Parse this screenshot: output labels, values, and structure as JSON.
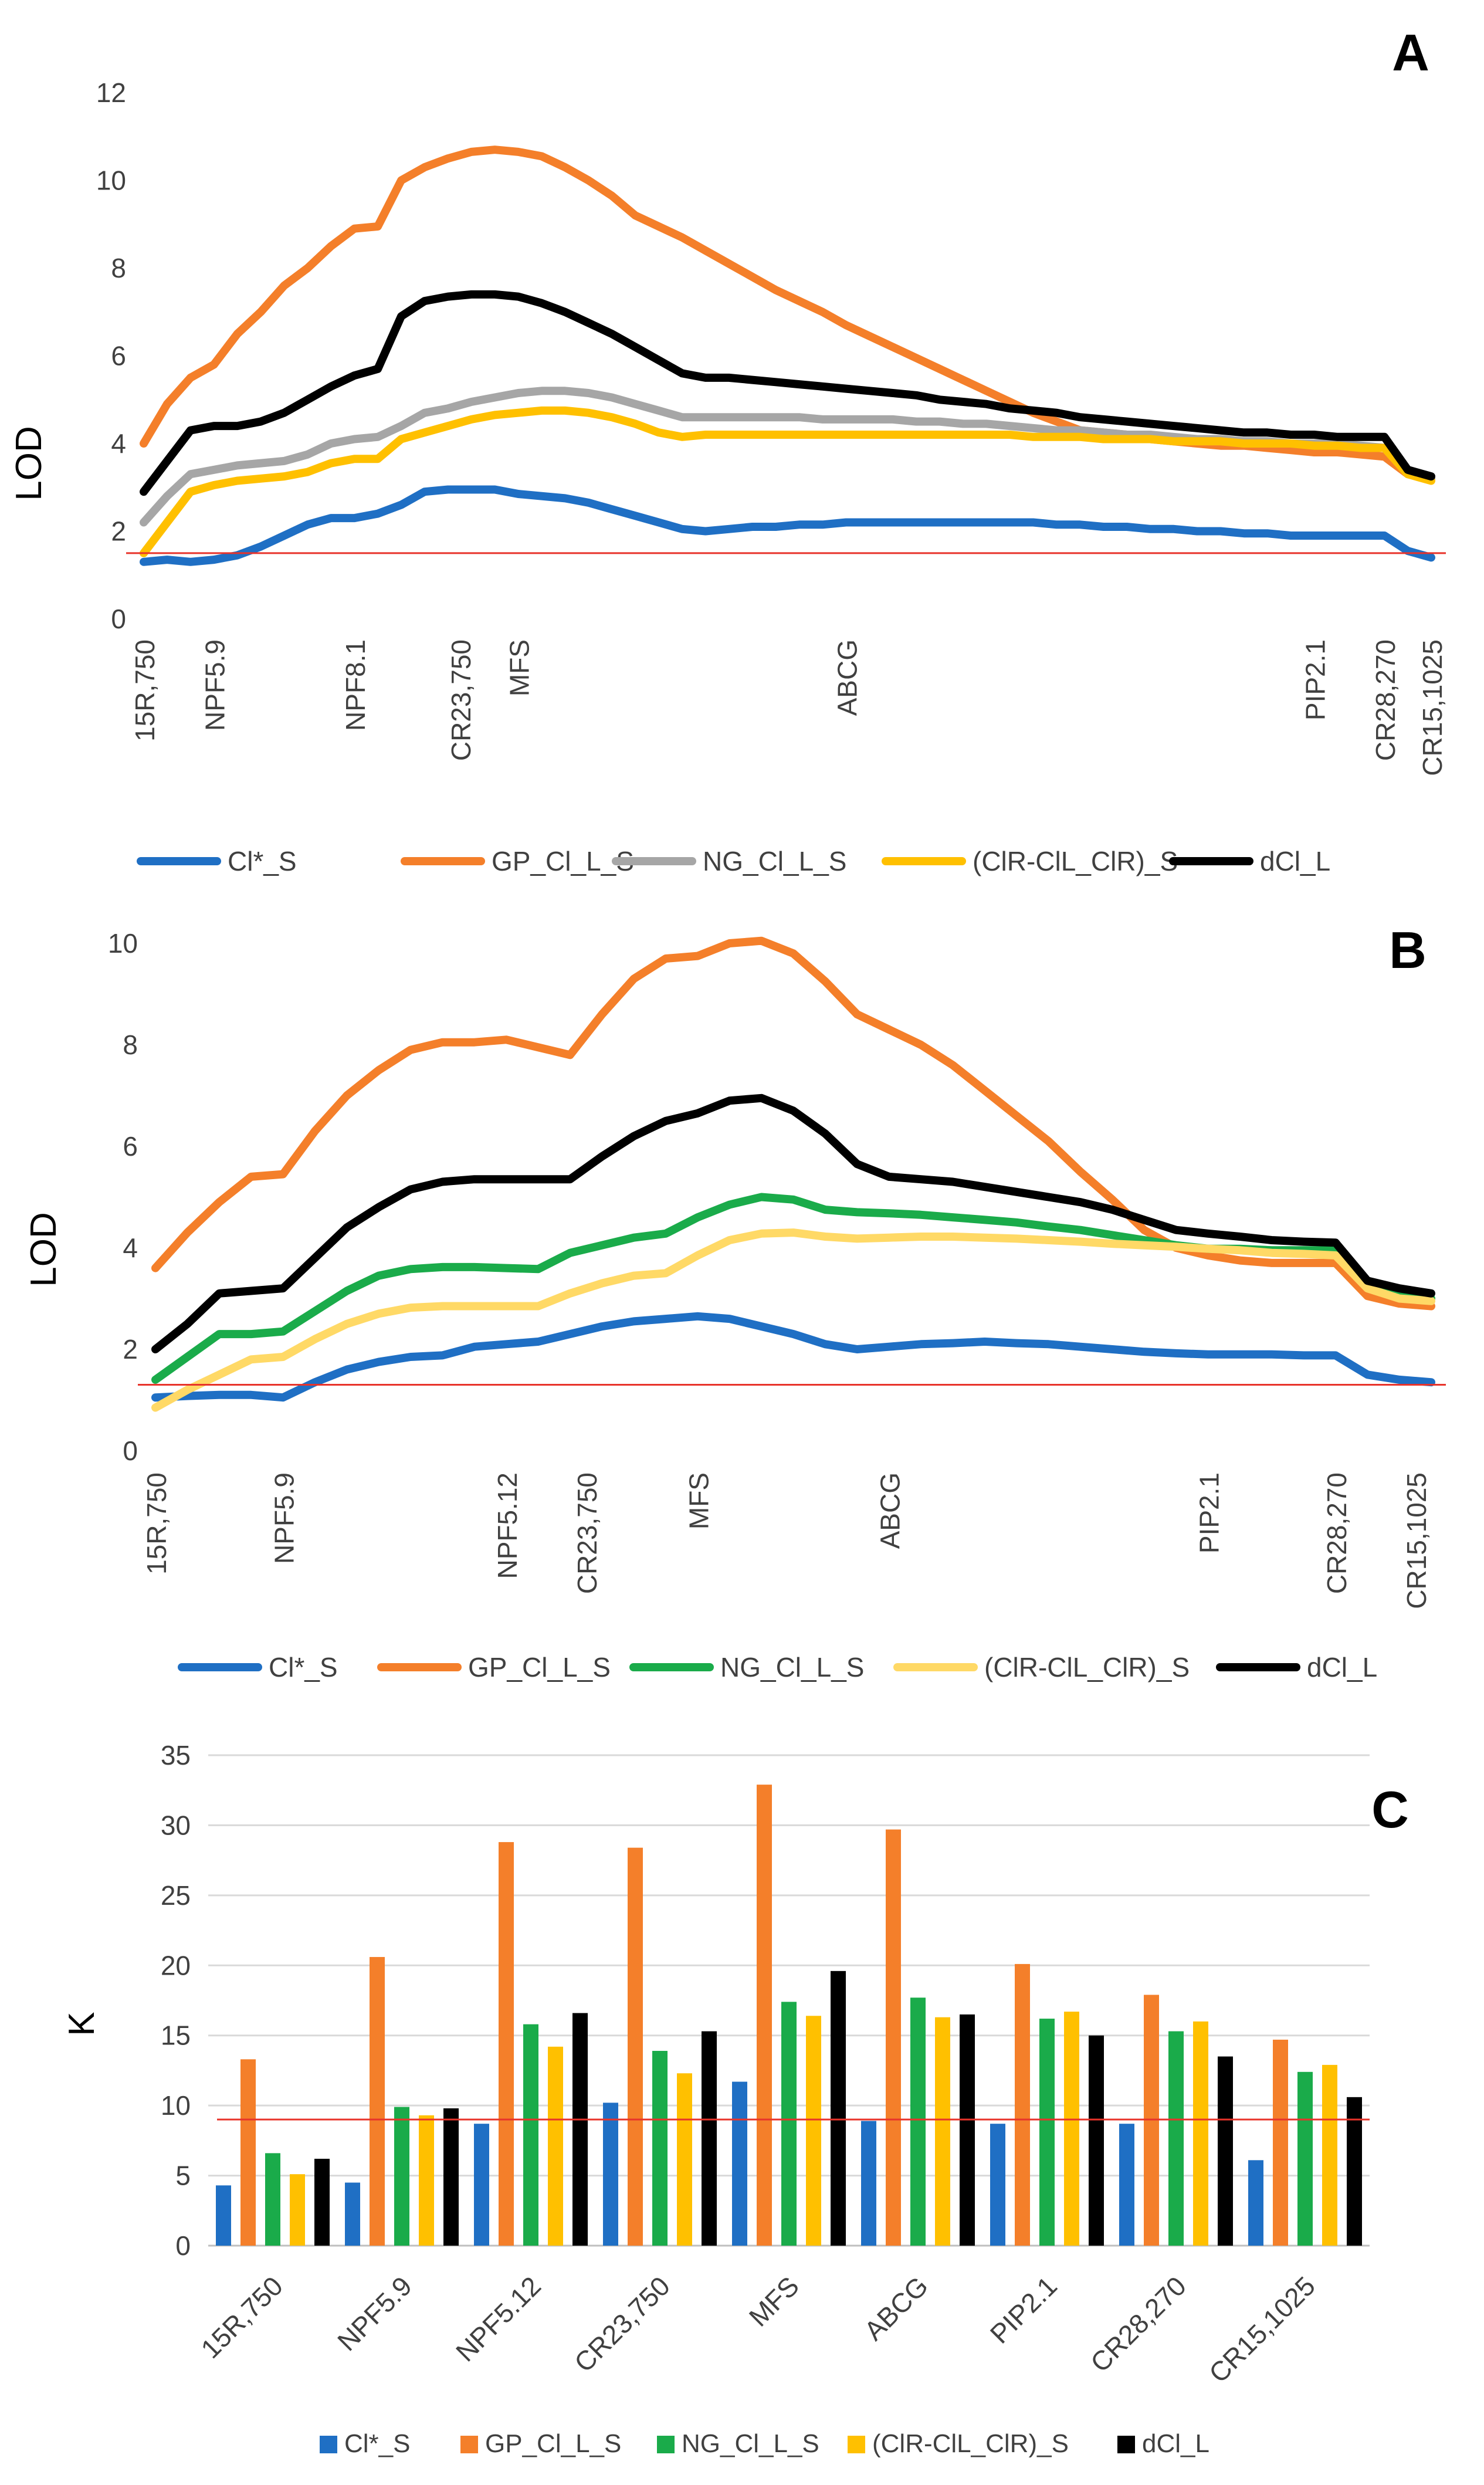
{
  "chart_data": [
    {
      "panel": "A",
      "type": "line",
      "ylabel": "LOD",
      "ylim": [
        0,
        12
      ],
      "yticks": [
        "0",
        "2",
        "4",
        "6",
        "8",
        "10",
        "12"
      ],
      "grid": false,
      "threshold": 1.5,
      "xlim": [
        0,
        55
      ],
      "markers": [
        {
          "label": "15R,750",
          "x": 0
        },
        {
          "label": "NPF5.9",
          "x": 3
        },
        {
          "label": "NPF8.1",
          "x": 9
        },
        {
          "label": "CR23,750",
          "x": 13.5
        },
        {
          "label": "MFS",
          "x": 16
        },
        {
          "label": "ABCG",
          "x": 30
        },
        {
          "label": "PIP2.1",
          "x": 50
        },
        {
          "label": "CR28,270",
          "x": 53
        },
        {
          "label": "CR15,1025",
          "x": 55
        }
      ],
      "x": [
        0,
        1,
        2,
        3,
        4,
        5,
        6,
        7,
        8,
        9,
        10,
        11,
        12,
        13,
        14,
        15,
        16,
        17,
        18,
        19,
        20,
        21,
        22,
        23,
        24,
        25,
        26,
        27,
        28,
        29,
        30,
        31,
        32,
        33,
        34,
        35,
        36,
        37,
        38,
        39,
        40,
        41,
        42,
        43,
        44,
        45,
        46,
        47,
        48,
        49,
        50,
        51,
        52,
        53,
        54,
        55
      ],
      "series": [
        {
          "name": "Cl*_S",
          "color": "#1f6fc4",
          "values": [
            1.3,
            1.35,
            1.3,
            1.35,
            1.45,
            1.65,
            1.9,
            2.15,
            2.3,
            2.3,
            2.4,
            2.6,
            2.9,
            2.95,
            2.95,
            2.95,
            2.85,
            2.8,
            2.75,
            2.65,
            2.5,
            2.35,
            2.2,
            2.05,
            2.0,
            2.05,
            2.1,
            2.1,
            2.15,
            2.15,
            2.2,
            2.2,
            2.2,
            2.2,
            2.2,
            2.2,
            2.2,
            2.2,
            2.2,
            2.15,
            2.15,
            2.1,
            2.1,
            2.05,
            2.05,
            2.0,
            2.0,
            1.95,
            1.95,
            1.9,
            1.9,
            1.9,
            1.9,
            1.9,
            1.55,
            1.4
          ]
        },
        {
          "name": "GP_Cl_L_S",
          "color": "#f47f2a",
          "values": [
            4.0,
            4.9,
            5.5,
            5.8,
            6.5,
            7.0,
            7.6,
            8.0,
            8.5,
            8.9,
            8.95,
            10.0,
            10.3,
            10.5,
            10.65,
            10.7,
            10.65,
            10.55,
            10.3,
            10.0,
            9.65,
            9.2,
            8.95,
            8.7,
            8.4,
            8.1,
            7.8,
            7.5,
            7.25,
            7.0,
            6.7,
            6.45,
            6.2,
            5.95,
            5.7,
            5.45,
            5.2,
            4.95,
            4.7,
            4.5,
            4.3,
            4.25,
            4.2,
            4.1,
            4.05,
            4.0,
            3.95,
            3.95,
            3.9,
            3.85,
            3.8,
            3.8,
            3.75,
            3.7,
            3.3,
            3.2
          ]
        },
        {
          "name": "NG_Cl_L_S",
          "color": "#a6a6a6",
          "values": [
            2.2,
            2.8,
            3.3,
            3.4,
            3.5,
            3.55,
            3.6,
            3.75,
            4.0,
            4.1,
            4.15,
            4.4,
            4.7,
            4.8,
            4.95,
            5.05,
            5.15,
            5.2,
            5.2,
            5.15,
            5.05,
            4.9,
            4.75,
            4.6,
            4.6,
            4.6,
            4.6,
            4.6,
            4.6,
            4.55,
            4.55,
            4.55,
            4.55,
            4.5,
            4.5,
            4.45,
            4.45,
            4.4,
            4.35,
            4.3,
            4.3,
            4.25,
            4.2,
            4.2,
            4.15,
            4.1,
            4.1,
            4.05,
            4.05,
            4.0,
            4.0,
            4.0,
            3.95,
            3.9,
            3.4,
            3.2
          ]
        },
        {
          "name": "(ClR-ClL_ClR)_S",
          "color": "#ffc000",
          "values": [
            1.5,
            2.2,
            2.9,
            3.05,
            3.15,
            3.2,
            3.25,
            3.35,
            3.55,
            3.65,
            3.65,
            4.1,
            4.25,
            4.4,
            4.55,
            4.65,
            4.7,
            4.75,
            4.75,
            4.7,
            4.6,
            4.45,
            4.25,
            4.15,
            4.2,
            4.2,
            4.2,
            4.2,
            4.2,
            4.2,
            4.2,
            4.2,
            4.2,
            4.2,
            4.2,
            4.2,
            4.2,
            4.2,
            4.15,
            4.15,
            4.15,
            4.1,
            4.1,
            4.1,
            4.05,
            4.05,
            4.05,
            4.0,
            4.0,
            4.0,
            3.95,
            3.95,
            3.9,
            3.9,
            3.3,
            3.15
          ]
        },
        {
          "name": "dCl_L",
          "color": "#000000",
          "values": [
            2.9,
            3.6,
            4.3,
            4.4,
            4.4,
            4.5,
            4.7,
            5.0,
            5.3,
            5.55,
            5.7,
            6.9,
            7.25,
            7.35,
            7.4,
            7.4,
            7.35,
            7.2,
            7.0,
            6.75,
            6.5,
            6.2,
            5.9,
            5.6,
            5.5,
            5.5,
            5.45,
            5.4,
            5.35,
            5.3,
            5.25,
            5.2,
            5.15,
            5.1,
            5.0,
            4.95,
            4.9,
            4.8,
            4.75,
            4.7,
            4.6,
            4.55,
            4.5,
            4.45,
            4.4,
            4.35,
            4.3,
            4.25,
            4.25,
            4.2,
            4.2,
            4.15,
            4.15,
            4.15,
            3.4,
            3.25
          ]
        }
      ],
      "legend": "bottom"
    },
    {
      "panel": "B",
      "type": "line",
      "ylabel": "LOD",
      "ylim": [
        0,
        10
      ],
      "yticks": [
        "0",
        "2",
        "4",
        "6",
        "8",
        "10"
      ],
      "grid": false,
      "threshold": 1.3,
      "xlim": [
        0,
        40
      ],
      "markers": [
        {
          "label": "15R,750",
          "x": 0
        },
        {
          "label": "NPF5.9",
          "x": 4
        },
        {
          "label": "NPF5.12",
          "x": 11
        },
        {
          "label": "CR23,750",
          "x": 13.5
        },
        {
          "label": "MFS",
          "x": 17
        },
        {
          "label": "ABCG",
          "x": 23
        },
        {
          "label": "PIP2.1",
          "x": 33
        },
        {
          "label": "CR28,270",
          "x": 37
        },
        {
          "label": "CR15,1025",
          "x": 39.5
        }
      ],
      "x": [
        0,
        1,
        2,
        3,
        4,
        5,
        6,
        7,
        8,
        9,
        10,
        11,
        12,
        13,
        14,
        15,
        16,
        17,
        18,
        19,
        20,
        21,
        22,
        23,
        24,
        25,
        26,
        27,
        28,
        29,
        30,
        31,
        32,
        33,
        34,
        35,
        36,
        37,
        38,
        39,
        40
      ],
      "series": [
        {
          "name": "Cl*_S",
          "color": "#1f6fc4",
          "values": [
            1.05,
            1.08,
            1.1,
            1.1,
            1.05,
            1.35,
            1.6,
            1.75,
            1.85,
            1.88,
            2.05,
            2.1,
            2.15,
            2.3,
            2.45,
            2.55,
            2.6,
            2.65,
            2.6,
            2.45,
            2.3,
            2.1,
            2.0,
            2.05,
            2.1,
            2.12,
            2.15,
            2.12,
            2.1,
            2.05,
            2.0,
            1.95,
            1.92,
            1.9,
            1.9,
            1.9,
            1.88,
            1.88,
            1.5,
            1.4,
            1.35
          ]
        },
        {
          "name": "GP_Cl_L_S",
          "color": "#f47f2a",
          "values": [
            3.6,
            4.3,
            4.9,
            5.4,
            5.45,
            6.3,
            7.0,
            7.5,
            7.9,
            8.05,
            8.05,
            8.1,
            7.95,
            7.8,
            8.6,
            9.3,
            9.7,
            9.75,
            10.0,
            10.05,
            9.8,
            9.25,
            8.6,
            8.3,
            8.0,
            7.6,
            7.1,
            6.6,
            6.1,
            5.5,
            4.95,
            4.35,
            4.0,
            3.85,
            3.75,
            3.7,
            3.7,
            3.7,
            3.05,
            2.9,
            2.85
          ]
        },
        {
          "name": "NG_Cl_L_S",
          "color": "#1aab4a",
          "values": [
            1.4,
            1.85,
            2.3,
            2.3,
            2.35,
            2.75,
            3.15,
            3.45,
            3.58,
            3.62,
            3.62,
            3.6,
            3.58,
            3.9,
            4.05,
            4.2,
            4.28,
            4.6,
            4.85,
            5.0,
            4.95,
            4.75,
            4.7,
            4.68,
            4.65,
            4.6,
            4.55,
            4.5,
            4.42,
            4.35,
            4.25,
            4.15,
            4.05,
            3.98,
            3.98,
            3.95,
            3.95,
            3.95,
            3.35,
            3.1,
            3.0
          ]
        },
        {
          "name": "(ClR-ClL_ClR)_S",
          "color": "#ffd966",
          "values": [
            0.85,
            1.2,
            1.5,
            1.8,
            1.85,
            2.2,
            2.5,
            2.7,
            2.82,
            2.85,
            2.85,
            2.85,
            2.85,
            3.1,
            3.3,
            3.45,
            3.5,
            3.85,
            4.15,
            4.28,
            4.3,
            4.22,
            4.18,
            4.2,
            4.22,
            4.22,
            4.2,
            4.18,
            4.15,
            4.12,
            4.08,
            4.05,
            4.02,
            3.98,
            3.95,
            3.9,
            3.88,
            3.85,
            3.2,
            3.0,
            2.95
          ]
        },
        {
          "name": "dCl_L",
          "color": "#000000",
          "values": [
            2.0,
            2.5,
            3.1,
            3.15,
            3.2,
            3.8,
            4.4,
            4.8,
            5.15,
            5.3,
            5.35,
            5.35,
            5.35,
            5.35,
            5.8,
            6.2,
            6.5,
            6.65,
            6.9,
            6.95,
            6.7,
            6.25,
            5.65,
            5.4,
            5.35,
            5.3,
            5.2,
            5.1,
            5.0,
            4.9,
            4.75,
            4.55,
            4.35,
            4.28,
            4.22,
            4.15,
            4.12,
            4.1,
            3.35,
            3.2,
            3.1
          ]
        }
      ],
      "legend": "bottom"
    },
    {
      "panel": "C",
      "type": "bar",
      "ylabel": "K",
      "ylim": [
        0,
        35
      ],
      "yticks": [
        "0",
        "5",
        "10",
        "15",
        "20",
        "25",
        "30",
        "35"
      ],
      "grid": true,
      "threshold": 9,
      "categories": [
        "15R,750",
        "NPF5.9",
        "NPF5.12",
        "CR23,750",
        "MFS",
        "ABCG",
        "PIP2.1",
        "CR28,270",
        "CR15,1025"
      ],
      "series": [
        {
          "name": "Cl*_S",
          "color": "#1f6fc4",
          "values": [
            4.3,
            4.5,
            8.7,
            10.2,
            11.7,
            8.9,
            8.7,
            8.7,
            6.1
          ]
        },
        {
          "name": "GP_Cl_L_S",
          "color": "#f47f2a",
          "values": [
            13.3,
            20.6,
            28.8,
            28.4,
            32.9,
            29.7,
            20.1,
            17.9,
            14.7
          ]
        },
        {
          "name": "NG_Cl_L_S",
          "color": "#1aab4a",
          "values": [
            6.6,
            9.9,
            15.8,
            13.9,
            17.4,
            17.7,
            16.2,
            15.3,
            12.4
          ]
        },
        {
          "name": "(ClR-ClL_ClR)_S",
          "color": "#ffc000",
          "values": [
            5.1,
            9.3,
            14.2,
            12.3,
            16.4,
            16.3,
            16.7,
            16.0,
            12.9
          ]
        },
        {
          "name": "dCl_L",
          "color": "#000000",
          "values": [
            6.2,
            9.8,
            16.6,
            15.3,
            19.6,
            16.5,
            15.0,
            13.5,
            10.6
          ]
        }
      ],
      "legend": "bottom"
    }
  ]
}
